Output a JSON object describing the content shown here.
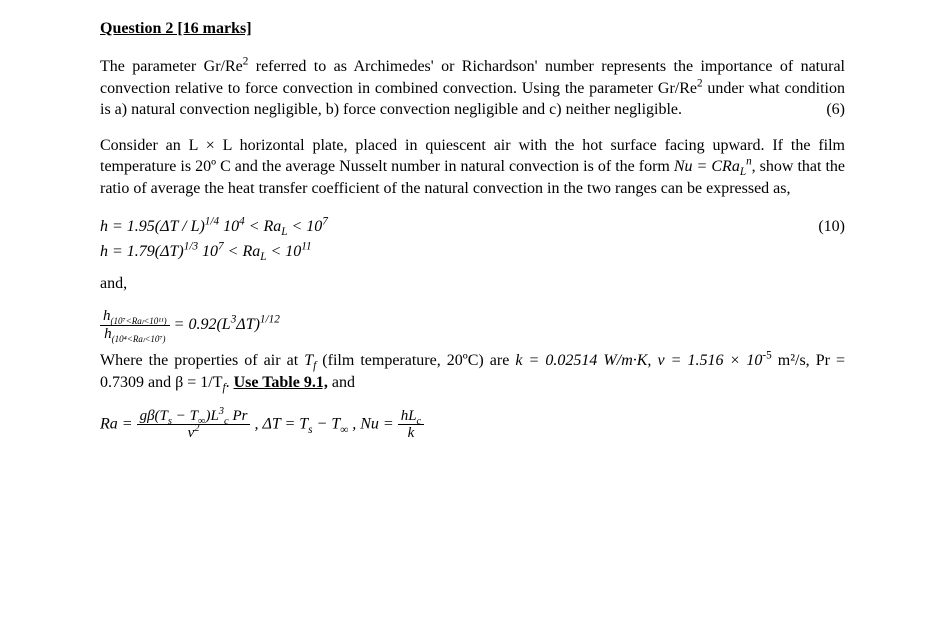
{
  "heading": "Question 2 [16 marks]",
  "para1_a": "The parameter Gr/Re",
  "para1_b": " referred to as Archimedes' or Richardson' number represents the importance of natural convection relative to force convection in combined convection.  Using the parameter Gr/Re",
  "para1_c": " under what condition is a) natural convection negligible, b) force convection negligible and c) neither negligible.",
  "para1_marker": "(6)",
  "para2_a": "Consider an L × L horizontal plate, placed in quiescent air with the hot surface facing upward.  If the film temperature is 20º C and the average Nusselt number in natural convection is of the form ",
  "para2_form_lhs": "Nu = CRa",
  "para2_form_sub": "L",
  "para2_form_sup": "n",
  "para2_b": ", show that the ratio of average the heat transfer coefficient of the natural convection in the two ranges can be expressed as,",
  "eq1_a": "h = 1.95(ΔT / L)",
  "eq1_exp": "1/4",
  "eq1_cond_pre": "   10",
  "eq1_cond_sup1": "4",
  "eq1_cond_mid": " < Ra",
  "eq1_cond_sub": "L",
  "eq1_cond_end": " < 10",
  "eq1_cond_sup2": "7",
  "eq1_marker": "(10)",
  "eq2_a": "h = 1.79(ΔT)",
  "eq2_exp": "1/3",
  "eq2_cond_pre": "   10",
  "eq2_cond_sup1": "7",
  "eq2_cond_mid": " < Ra",
  "eq2_cond_sub": "L",
  "eq2_cond_end": " < 10",
  "eq2_cond_sup2": "11",
  "and": "and,",
  "ratio_num_h": "h",
  "ratio_num_sub": "(10⁷<Raₗ<10¹¹)",
  "ratio_den_h": "h",
  "ratio_den_sub": "(10⁴<Raₗ<10⁷)",
  "ratio_rhs_a": " = 0.92(L",
  "ratio_rhs_sup1": "3",
  "ratio_rhs_b": "ΔT)",
  "ratio_rhs_exp": "1/12",
  "para3_a": "Where the properties of air at ",
  "para3_Tf": "T",
  "para3_fsub": "f",
  "para3_b": " (film temperature, 20ºC) are ",
  "para3_c": "k = 0.02514 W/m·K, ν = 1.516 × 10",
  "para3_sup": "-5",
  "para3_d": " m²/s, Pr = 0.7309 and β = 1/T",
  "para3_fsub2": "f",
  "para3_e": ". ",
  "para3_ul": "Use Table 9.1,",
  "para3_f": " and",
  "ra_lhs": "Ra = ",
  "ra_num_a": "gβ(T",
  "ra_s": "s",
  "ra_num_b": " − T",
  "ra_inf": "∞",
  "ra_num_c": ")L",
  "ra_num_sup": "3",
  "ra_num_sub": "c",
  "ra_num_d": " Pr",
  "ra_den": "ν",
  "ra_den_sup": "2",
  "dt": ", ΔT = T",
  "dt_s": "s",
  "dt_b": " − T",
  "dt_inf": "∞",
  "nu_a": " , Nu = ",
  "nu_num_a": "hL",
  "nu_num_sub": "c",
  "nu_den": "k"
}
